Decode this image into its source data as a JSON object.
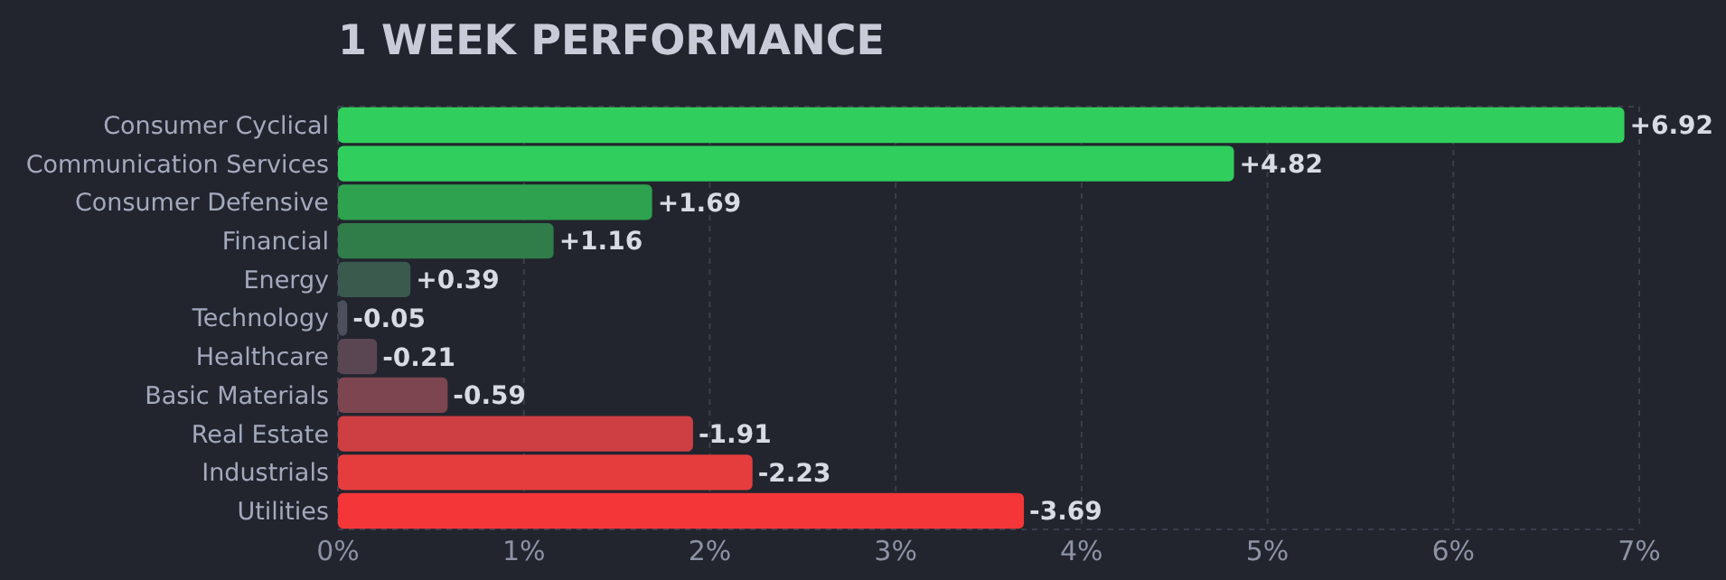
{
  "chart_data": {
    "type": "bar",
    "orientation": "horizontal",
    "title": "1 WEEK PERFORMANCE",
    "categories": [
      "Consumer Cyclical",
      "Communication Services",
      "Consumer Defensive",
      "Financial",
      "Energy",
      "Technology",
      "Healthcare",
      "Basic Materials",
      "Real Estate",
      "Industrials",
      "Utilities"
    ],
    "values": [
      6.92,
      4.82,
      1.69,
      1.16,
      0.39,
      -0.05,
      -0.21,
      -0.59,
      -1.91,
      -2.23,
      -3.69
    ],
    "base": [
      0,
      0,
      0,
      0,
      0,
      0.05,
      0.21,
      0.59,
      1.91,
      2.23,
      3.69
    ],
    "value_labels": [
      "+6.92",
      "+4.82",
      "+1.69",
      "+1.16",
      "+0.39",
      "-0.05",
      "-0.21",
      "-0.59",
      "-1.91",
      "-2.23",
      "-3.69"
    ],
    "colors": [
      "#30cf5d",
      "#30cf5d",
      "#2ea24f",
      "#317d49",
      "#3a5a4e",
      "#4b4f5e",
      "#5a4553",
      "#7d4550",
      "#cd3f43",
      "#e53d3e",
      "#f53639"
    ],
    "xlim": [
      0,
      7
    ],
    "xticks": [
      {
        "value": 0,
        "label": "0%"
      },
      {
        "value": 1,
        "label": "1%"
      },
      {
        "value": 2,
        "label": "2%"
      },
      {
        "value": 3,
        "label": "3%"
      },
      {
        "value": 4,
        "label": "4%"
      },
      {
        "value": 5,
        "label": "5%"
      },
      {
        "value": 6,
        "label": "6%"
      },
      {
        "value": 7,
        "label": "7%"
      }
    ],
    "grid": "x"
  }
}
